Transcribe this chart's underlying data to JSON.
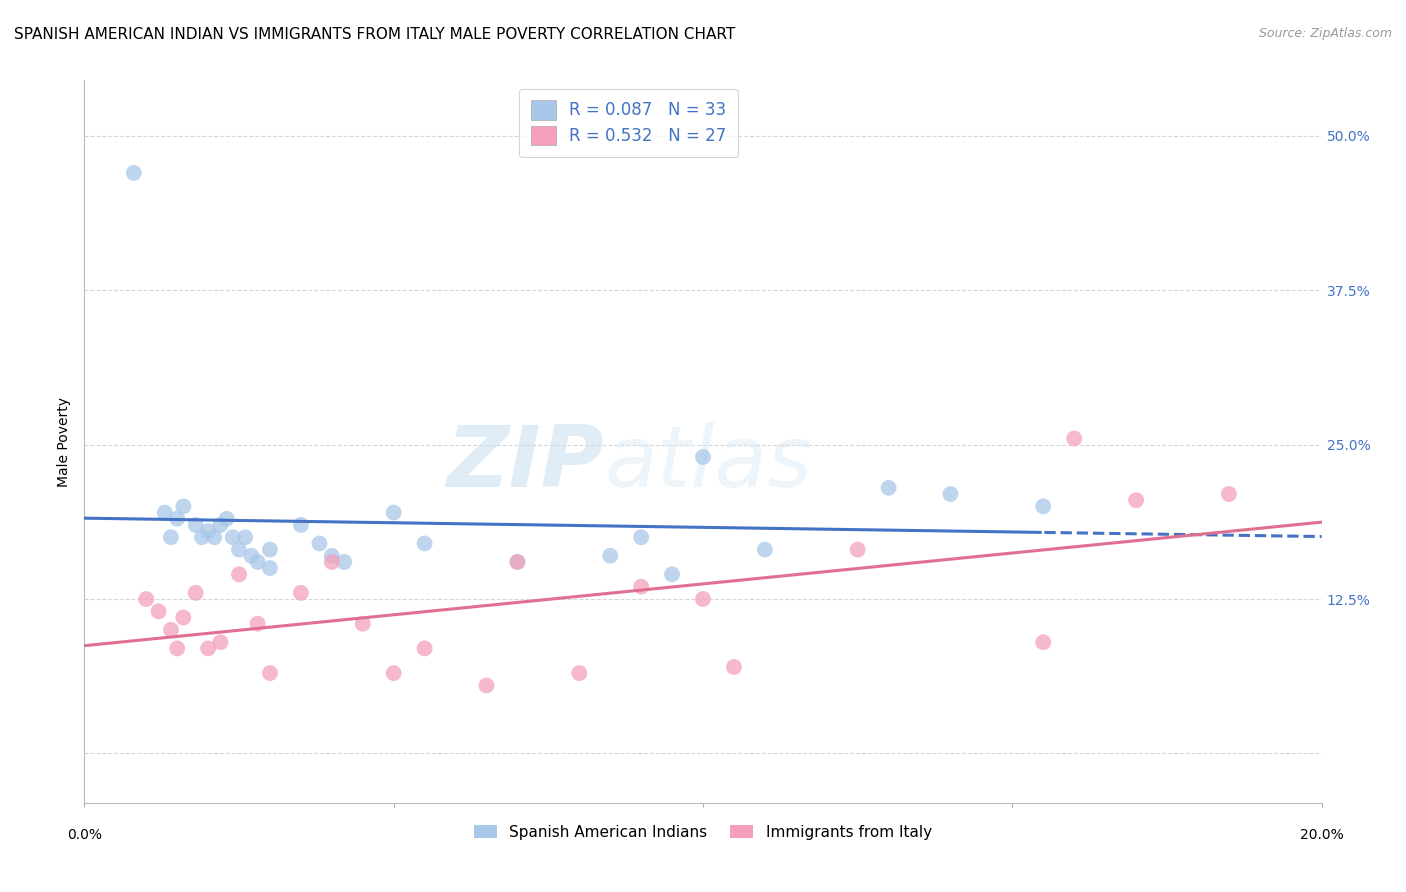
{
  "title": "SPANISH AMERICAN INDIAN VS IMMIGRANTS FROM ITALY MALE POVERTY CORRELATION CHART",
  "source": "Source: ZipAtlas.com",
  "ylabel": "Male Poverty",
  "ytick_values": [
    0.0,
    0.125,
    0.25,
    0.375,
    0.5
  ],
  "ytick_labels": [
    "",
    "12.5%",
    "25.0%",
    "37.5%",
    "50.0%"
  ],
  "xmin": 0.0,
  "xmax": 0.2,
  "ymin": -0.04,
  "ymax": 0.545,
  "series1_label": "Spanish American Indians",
  "series2_label": "Immigrants from Italy",
  "series1_color": "#a8c8e8",
  "series2_color": "#f4a0bb",
  "series1_line_color": "#4472c4",
  "series2_line_color": "#e07090",
  "series1_x": [
    0.008,
    0.013,
    0.014,
    0.015,
    0.016,
    0.018,
    0.019,
    0.02,
    0.021,
    0.022,
    0.023,
    0.024,
    0.025,
    0.026,
    0.027,
    0.028,
    0.03,
    0.03,
    0.035,
    0.038,
    0.04,
    0.042,
    0.05,
    0.055,
    0.07,
    0.085,
    0.09,
    0.095,
    0.1,
    0.11,
    0.13,
    0.14,
    0.155
  ],
  "series1_y": [
    0.47,
    0.195,
    0.175,
    0.19,
    0.2,
    0.185,
    0.175,
    0.18,
    0.175,
    0.185,
    0.19,
    0.175,
    0.165,
    0.175,
    0.16,
    0.155,
    0.165,
    0.15,
    0.185,
    0.17,
    0.16,
    0.155,
    0.195,
    0.17,
    0.155,
    0.16,
    0.175,
    0.145,
    0.24,
    0.165,
    0.215,
    0.21,
    0.2
  ],
  "series2_x": [
    0.01,
    0.012,
    0.014,
    0.015,
    0.016,
    0.018,
    0.02,
    0.022,
    0.025,
    0.028,
    0.03,
    0.035,
    0.04,
    0.045,
    0.05,
    0.055,
    0.065,
    0.07,
    0.08,
    0.09,
    0.1,
    0.105,
    0.125,
    0.155,
    0.16,
    0.17,
    0.185
  ],
  "series2_y": [
    0.125,
    0.115,
    0.1,
    0.085,
    0.11,
    0.13,
    0.085,
    0.09,
    0.145,
    0.105,
    0.065,
    0.13,
    0.155,
    0.105,
    0.065,
    0.085,
    0.055,
    0.155,
    0.065,
    0.135,
    0.125,
    0.07,
    0.165,
    0.09,
    0.255,
    0.205,
    0.21
  ],
  "watermark_zip": "ZIP",
  "watermark_atlas": "atlas",
  "background_color": "#ffffff",
  "grid_color": "#cccccc",
  "title_fontsize": 11,
  "axis_label_fontsize": 10,
  "tick_fontsize": 10,
  "legend_R1": "R = 0.087",
  "legend_N1": "N = 33",
  "legend_R2": "R = 0.532",
  "legend_N2": "N = 27",
  "legend_color1": "#a8c8e8",
  "legend_color2": "#f4a0bb",
  "legend_text_color": "#4472c4"
}
